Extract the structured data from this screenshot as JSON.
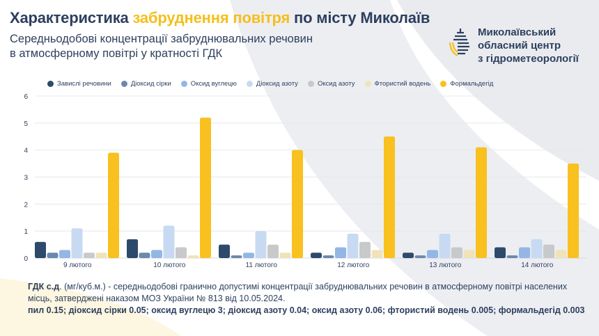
{
  "header": {
    "title_part1": "Характеристика ",
    "title_highlight": "забруднення повітря",
    "title_part2": " по місту Миколаїв",
    "subtitle_line1": "Середньодобові концентрації забруднювальних речовин",
    "subtitle_line2": "в атмосферному повітрі у кратності ГДК",
    "org_line1": "Миколаївський",
    "org_line2": "обласний центр",
    "org_line3": "з гідрометеорології"
  },
  "colors": {
    "accent": "#f5bf1b",
    "text": "#2d3f5e"
  },
  "chart_data": {
    "type": "bar",
    "categories": [
      "9 лютого",
      "10 лютого",
      "11 лютого",
      "12 лютого",
      "13 лютого",
      "14 лютого"
    ],
    "series": [
      {
        "name": "Завислі речовини",
        "color": "#2e4a6b",
        "values": [
          0.6,
          0.7,
          0.5,
          0.2,
          0.2,
          0.4
        ]
      },
      {
        "name": "Діоксид сірки",
        "color": "#6b88ad",
        "values": [
          0.2,
          0.2,
          0.1,
          0.1,
          0.1,
          0.1
        ]
      },
      {
        "name": "Оксид вуглецю",
        "color": "#93b6e4",
        "values": [
          0.3,
          0.3,
          0.2,
          0.4,
          0.3,
          0.4
        ]
      },
      {
        "name": "Діоксид азоту",
        "color": "#c8daf2",
        "values": [
          1.1,
          1.2,
          1.0,
          0.9,
          0.9,
          0.7
        ]
      },
      {
        "name": "Оксид азоту",
        "color": "#c8c9cb",
        "values": [
          0.2,
          0.4,
          0.5,
          0.6,
          0.4,
          0.5
        ]
      },
      {
        "name": "Фтористий водень",
        "color": "#f0e3b8",
        "values": [
          0.2,
          0.1,
          0.2,
          0.3,
          0.3,
          0.3
        ]
      },
      {
        "name": "Формальдегід",
        "color": "#f8c11f",
        "values": [
          3.9,
          5.2,
          4.0,
          4.5,
          4.1,
          3.5
        ]
      }
    ],
    "ylim": [
      0,
      6
    ],
    "yticks": [
      "0",
      "1",
      "2",
      "3",
      "4",
      "5",
      "6"
    ],
    "grid": true,
    "legend": "top"
  },
  "note": {
    "bold1": "ГДК с.д",
    "text1": ". (мг/куб.м.) - середньодобові гранично допустимі концентрації забруднювальних речовин в атмосферному повітрі населених місць, затверджені наказом МОЗ України № 813 від 10.05.2024.",
    "bold2": "пил 0.15; діоксид сірки 0.05; оксид вуглецю 3; діоксид азоту 0.04; оксид азоту 0.06; фтористий водень 0.005; формальдегід 0.003"
  }
}
